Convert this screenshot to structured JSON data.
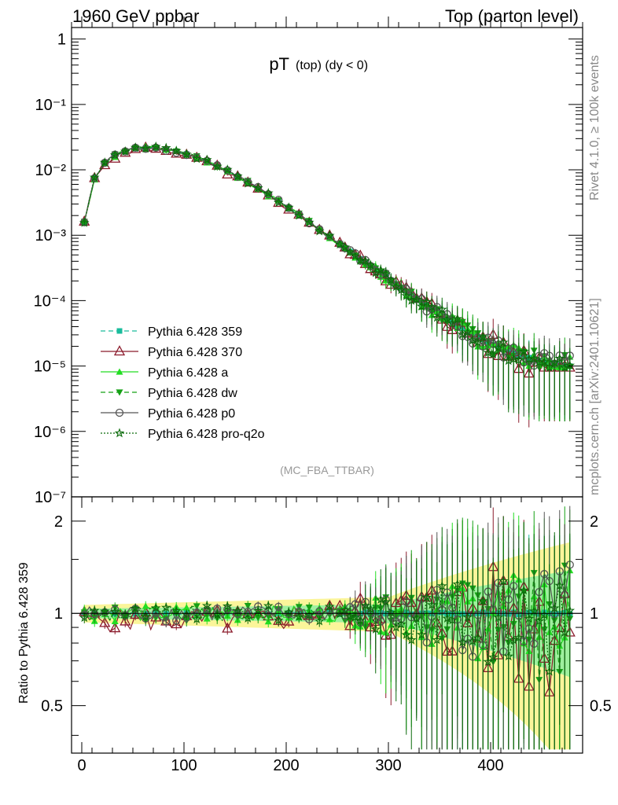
{
  "header": {
    "left": "1960 GeV ppbar",
    "right": "Top (parton level)"
  },
  "side_labels": {
    "rivet": "Rivet 4.1.0, ≥ 100k events",
    "mcplots": "mcplots.cern.ch [arXiv:2401.10621]"
  },
  "chart_data": {
    "type": "line",
    "title_main": "pT",
    "title_sub": "(top) (dy < 0)",
    "analysis": "(MC_FBA_TTBAR)",
    "xlabel": "",
    "ylabel": "",
    "ratio_ylabel": "Ratio to Pythia 6.428 359",
    "xlim": [
      -10,
      490
    ],
    "ylim_log": [
      1e-07,
      1.5
    ],
    "ratio_ylim": [
      0.35,
      2.4
    ],
    "x_ticks": [
      "0",
      "100",
      "200",
      "300",
      "400"
    ],
    "y_ticks_main": [
      "1",
      "10⁻¹",
      "10⁻²",
      "10⁻³",
      "10⁻⁴",
      "10⁻⁵",
      "10⁻⁶",
      "10⁻⁷"
    ],
    "y_ticks_ratio": [
      "0.5",
      "1",
      "2"
    ],
    "bin_width": 5,
    "reference": {
      "x": [
        2.5,
        12.5,
        25,
        40,
        55,
        70,
        85,
        100,
        120,
        140,
        160,
        180,
        200,
        220,
        240,
        260,
        280,
        300,
        320,
        340,
        360,
        380,
        400,
        420,
        440,
        460,
        477.5
      ],
      "y": [
        0.0016,
        0.0075,
        0.0145,
        0.019,
        0.0215,
        0.022,
        0.0205,
        0.018,
        0.014,
        0.01,
        0.0068,
        0.0044,
        0.0028,
        0.0017,
        0.001,
        0.0006,
        0.00036,
        0.00022,
        0.00013,
        8e-05,
        5e-05,
        3.2e-05,
        2.2e-05,
        1.6e-05,
        1.3e-05,
        1.1e-05,
        1e-05
      ]
    },
    "series": [
      {
        "name": "Pythia 6.428 359",
        "color": "#1abc9c",
        "dash": "6,4",
        "marker": "square",
        "ratio_amp": 0.05,
        "seed": 1
      },
      {
        "name": "Pythia 6.428 370",
        "color": "#8b1a2b",
        "dash": "",
        "marker": "triangle-open",
        "ratio_amp": 0.08,
        "seed": 2,
        "ratio_bias": -0.05
      },
      {
        "name": "Pythia 6.428 a",
        "color": "#22dd22",
        "dash": "",
        "marker": "triangle",
        "ratio_amp": 0.06,
        "seed": 3
      },
      {
        "name": "Pythia 6.428 dw",
        "color": "#15a015",
        "dash": "6,4",
        "marker": "triangle-down",
        "ratio_amp": 0.06,
        "seed": 4
      },
      {
        "name": "Pythia 6.428 p0",
        "color": "#555555",
        "dash": "",
        "marker": "circle-open",
        "ratio_amp": 0.06,
        "seed": 5
      },
      {
        "name": "Pythia 6.428 pro-q2o",
        "color": "#0b6b0b",
        "dash": "2,2",
        "marker": "star",
        "ratio_amp": 0.06,
        "seed": 6
      }
    ]
  }
}
